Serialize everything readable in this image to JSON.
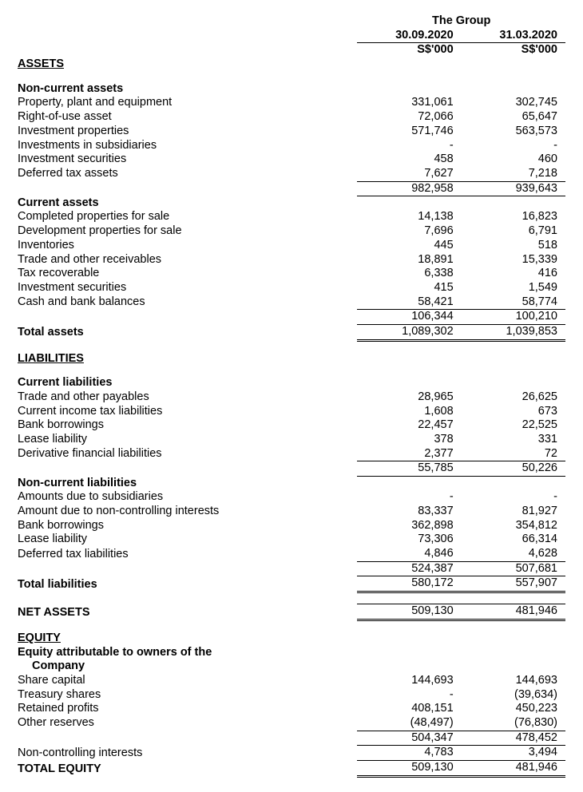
{
  "header": {
    "group_title": "The Group",
    "col1_date": "30.09.2020",
    "col2_date": "31.03.2020",
    "unit": "S$'000"
  },
  "sections": {
    "assets": "ASSETS",
    "nca": "Non-current assets",
    "ca": "Current assets",
    "total_assets": "Total assets",
    "liab": "LIABILITIES",
    "cl": "Current liabilities",
    "ncl": "Non-current liabilities",
    "total_liab": "Total liabilities",
    "net_assets": "NET ASSETS",
    "equity": "EQUITY",
    "equity_attr1": "Equity attributable to owners of the",
    "equity_attr2": "Company",
    "total_equity": "TOTAL EQUITY"
  },
  "nca_rows": [
    {
      "label": "Property, plant and equipment",
      "c1": "331,061",
      "c2": "302,745"
    },
    {
      "label": "Right-of-use asset",
      "c1": "72,066",
      "c2": "65,647"
    },
    {
      "label": "Investment properties",
      "c1": "571,746",
      "c2": "563,573"
    },
    {
      "label": "Investments in subsidiaries",
      "c1": "-",
      "c2": "-"
    },
    {
      "label": "Investment securities",
      "c1": "458",
      "c2": "460"
    },
    {
      "label": "Deferred tax assets",
      "c1": "7,627",
      "c2": "7,218"
    }
  ],
  "nca_subtotal": {
    "c1": "982,958",
    "c2": "939,643"
  },
  "ca_rows": [
    {
      "label": "Completed properties for sale",
      "c1": "14,138",
      "c2": "16,823"
    },
    {
      "label": "Development properties for sale",
      "c1": "7,696",
      "c2": "6,791"
    },
    {
      "label": "Inventories",
      "c1": "445",
      "c2": "518"
    },
    {
      "label": "Trade and other receivables",
      "c1": "18,891",
      "c2": "15,339"
    },
    {
      "label": "Tax recoverable",
      "c1": "6,338",
      "c2": "416"
    },
    {
      "label": "Investment securities",
      "c1": "415",
      "c2": "1,549"
    },
    {
      "label": "Cash and bank balances",
      "c1": "58,421",
      "c2": "58,774"
    }
  ],
  "ca_subtotal": {
    "c1": "106,344",
    "c2": "100,210"
  },
  "total_assets_v": {
    "c1": "1,089,302",
    "c2": "1,039,853"
  },
  "cl_rows": [
    {
      "label": "Trade and other payables",
      "c1": "28,965",
      "c2": "26,625"
    },
    {
      "label": "Current income tax liabilities",
      "c1": "1,608",
      "c2": "673"
    },
    {
      "label": "Bank borrowings",
      "c1": "22,457",
      "c2": "22,525"
    },
    {
      "label": "Lease liability",
      "c1": "378",
      "c2": "331"
    },
    {
      "label": "Derivative financial liabilities",
      "c1": "2,377",
      "c2": "72"
    }
  ],
  "cl_subtotal": {
    "c1": "55,785",
    "c2": "50,226"
  },
  "ncl_rows": [
    {
      "label": "Amounts due to subsidiaries",
      "c1": "-",
      "c2": "-"
    },
    {
      "label": "Amount due to non-controlling interests",
      "c1": "83,337",
      "c2": "81,927"
    },
    {
      "label": "Bank borrowings",
      "c1": "362,898",
      "c2": "354,812"
    },
    {
      "label": "Lease liability",
      "c1": "73,306",
      "c2": "66,314"
    },
    {
      "label": "Deferred tax liabilities",
      "c1": "4,846",
      "c2": "4,628"
    }
  ],
  "ncl_subtotal": {
    "c1": "524,387",
    "c2": "507,681"
  },
  "total_liab_v": {
    "c1": "580,172",
    "c2": "557,907"
  },
  "net_assets_v": {
    "c1": "509,130",
    "c2": "481,946"
  },
  "eq_rows": [
    {
      "label": "Share capital",
      "c1": "144,693",
      "c2": "144,693"
    },
    {
      "label": "Treasury shares",
      "c1": "-",
      "c2": "(39,634)"
    },
    {
      "label": "Retained profits",
      "c1": "408,151",
      "c2": "450,223"
    },
    {
      "label": "Other reserves",
      "c1": "(48,497)",
      "c2": "(76,830)"
    }
  ],
  "eq_subtotal": {
    "c1": "504,347",
    "c2": "478,452"
  },
  "nci": {
    "label": "Non-controlling interests",
    "c1": "4,783",
    "c2": "3,494"
  },
  "total_equity_v": {
    "c1": "509,130",
    "c2": "481,946"
  }
}
